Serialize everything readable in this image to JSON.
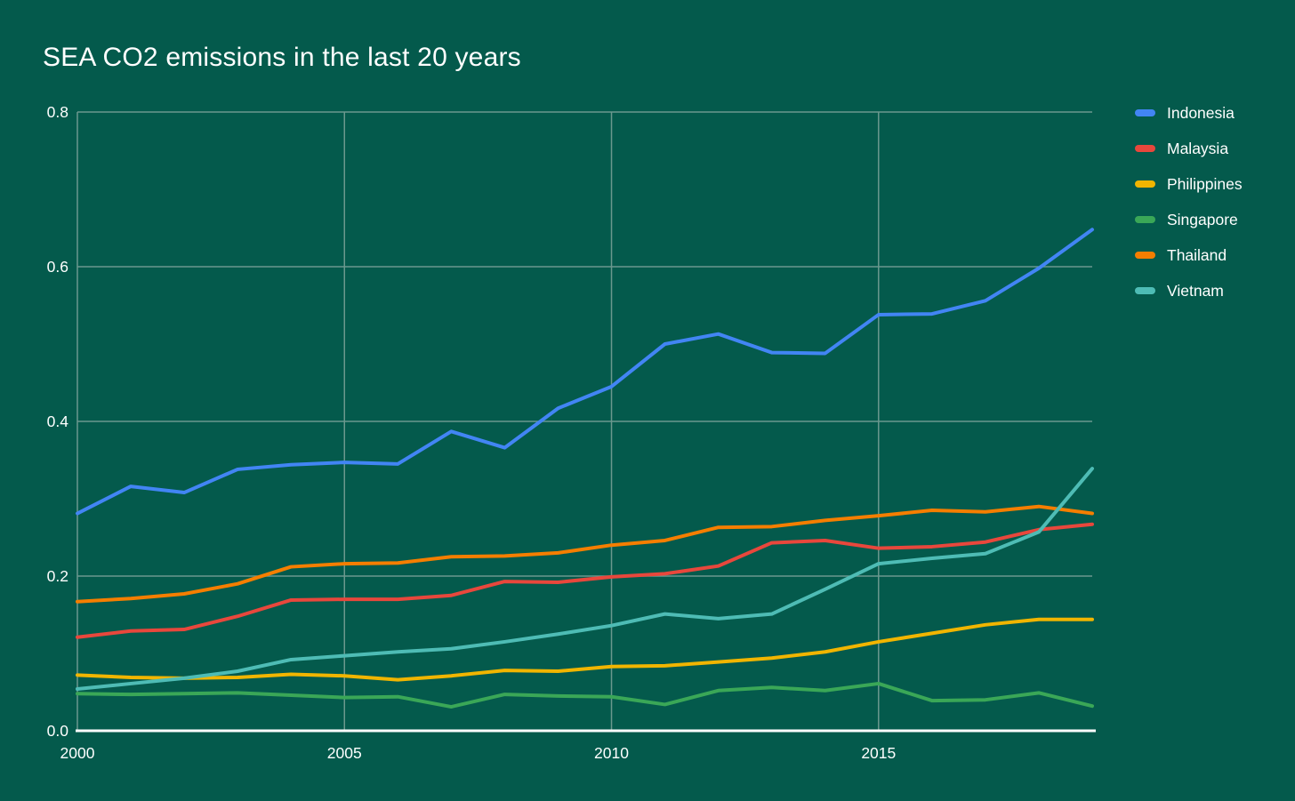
{
  "title": "SEA CO2 emissions in the last 20 years",
  "colors": {
    "background": "#045a4c",
    "grid": "#6b988e",
    "axis": "#ffffff",
    "text": "#ffffff"
  },
  "chart_data": {
    "type": "line",
    "title": "SEA CO2 emissions in the last 20 years",
    "xlabel": "",
    "ylabel": "",
    "x": [
      2000,
      2001,
      2002,
      2003,
      2004,
      2005,
      2006,
      2007,
      2008,
      2009,
      2010,
      2011,
      2012,
      2013,
      2014,
      2015,
      2016,
      2017,
      2018,
      2019
    ],
    "xlim": [
      2000,
      2019
    ],
    "ylim": [
      0,
      0.8
    ],
    "x_ticks": [
      2000,
      2005,
      2010,
      2015
    ],
    "x_tick_labels": [
      "2000",
      "2005",
      "2010",
      "2015"
    ],
    "y_ticks": [
      0,
      0.2,
      0.4,
      0.6,
      0.8
    ],
    "y_tick_labels": [
      "0.0",
      "0.2",
      "0.4",
      "0.6",
      "0.8"
    ],
    "grid": true,
    "legend_position": "right",
    "series": [
      {
        "name": "Indonesia",
        "color": "#4285f4",
        "values": [
          0.281,
          0.316,
          0.308,
          0.338,
          0.344,
          0.347,
          0.345,
          0.387,
          0.366,
          0.417,
          0.445,
          0.5,
          0.513,
          0.489,
          0.488,
          0.538,
          0.539,
          0.556,
          0.598,
          0.648
        ]
      },
      {
        "name": "Malaysia",
        "color": "#e8473c",
        "values": [
          0.121,
          0.129,
          0.131,
          0.148,
          0.169,
          0.17,
          0.17,
          0.175,
          0.193,
          0.192,
          0.199,
          0.203,
          0.213,
          0.243,
          0.246,
          0.236,
          0.238,
          0.244,
          0.26,
          0.267
        ]
      },
      {
        "name": "Philippines",
        "color": "#f1b500",
        "values": [
          0.072,
          0.069,
          0.068,
          0.069,
          0.073,
          0.071,
          0.066,
          0.071,
          0.078,
          0.077,
          0.083,
          0.084,
          0.089,
          0.094,
          0.102,
          0.115,
          0.126,
          0.137,
          0.144,
          0.144
        ]
      },
      {
        "name": "Singapore",
        "color": "#3aa757",
        "values": [
          0.048,
          0.047,
          0.048,
          0.049,
          0.046,
          0.043,
          0.044,
          0.031,
          0.047,
          0.045,
          0.044,
          0.034,
          0.052,
          0.056,
          0.052,
          0.061,
          0.039,
          0.04,
          0.049,
          0.032
        ]
      },
      {
        "name": "Thailand",
        "color": "#f57e00",
        "values": [
          0.167,
          0.171,
          0.177,
          0.19,
          0.212,
          0.216,
          0.217,
          0.225,
          0.226,
          0.23,
          0.24,
          0.246,
          0.263,
          0.264,
          0.272,
          0.278,
          0.285,
          0.283,
          0.29,
          0.281
        ]
      },
      {
        "name": "Vietnam",
        "color": "#4ebcb5",
        "values": [
          0.054,
          0.061,
          0.068,
          0.077,
          0.092,
          0.097,
          0.102,
          0.106,
          0.115,
          0.125,
          0.136,
          0.151,
          0.145,
          0.151,
          0.183,
          0.216,
          0.223,
          0.229,
          0.257,
          0.339
        ]
      }
    ]
  }
}
